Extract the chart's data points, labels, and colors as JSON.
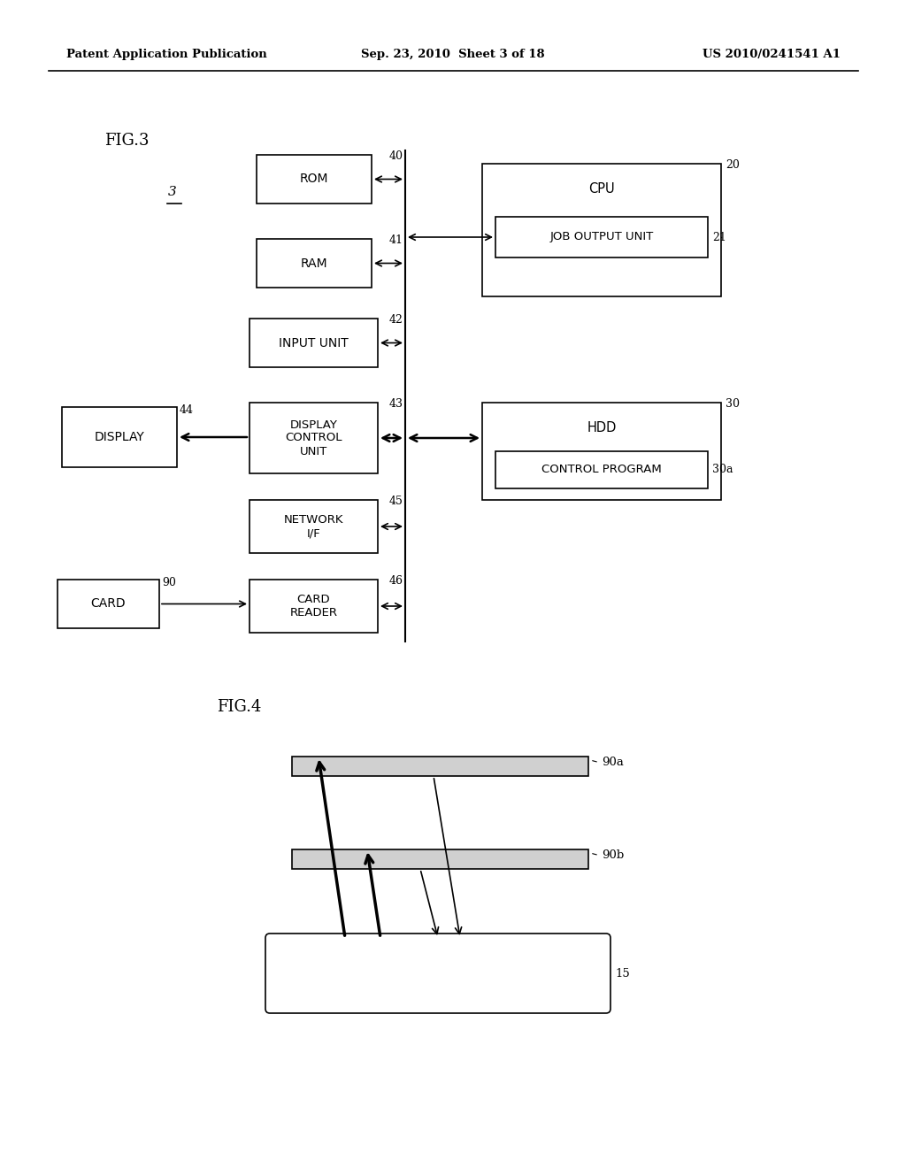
{
  "bg_color": "#ffffff",
  "header_left": "Patent Application Publication",
  "header_center": "Sep. 23, 2010  Sheet 3 of 18",
  "header_right": "US 2010/0241541 A1"
}
